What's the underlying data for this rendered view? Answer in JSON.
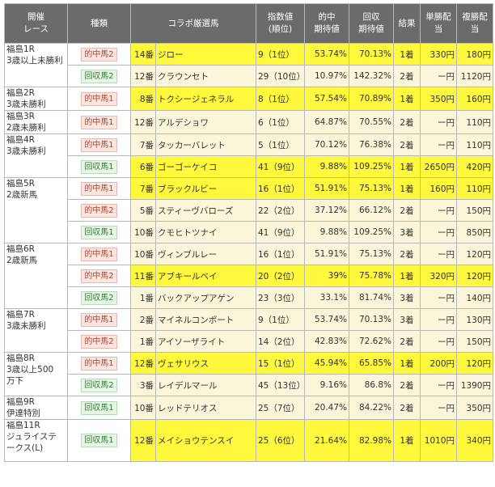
{
  "header": {
    "race": "開催\nレース",
    "type": "種類",
    "horse": "コラボ厳選馬",
    "index": "指数値\n(順位)",
    "hit_rate": "的中\n期待値",
    "return_rate": "回収\n期待値",
    "finish": "結果",
    "win_pay": "単勝配当",
    "place_pay": "複勝配当"
  },
  "colors": {
    "header_bg": "#6b6b6b",
    "hit_row_bg": "#fff83d",
    "miss_row_bg": "#fbf6d9",
    "tekichu_tag": "#fbe5de",
    "kaishu_tag": "#e7f6e5"
  },
  "races": [
    {
      "label": "福島1R\n3歳以上未勝利",
      "rows": [
        {
          "type": "的中馬2",
          "tag": "tekichu",
          "num": "14番",
          "horse": "ジロー",
          "index": "9（1位）",
          "hit": "53.74%",
          "ret": "70.13%",
          "finish": "1着",
          "win": "330円",
          "place": "180円",
          "hl": true
        },
        {
          "type": "回収馬2",
          "tag": "kaishu",
          "num": "12番",
          "horse": "クラウンセト",
          "index": "29（10位）",
          "hit": "10.97%",
          "ret": "142.32%",
          "finish": "2着",
          "win": "ー円",
          "place": "1120円",
          "hl": false
        }
      ]
    },
    {
      "label": "福島2R\n3歳未勝利",
      "rows": [
        {
          "type": "的中馬1",
          "tag": "tekichu",
          "num": "8番",
          "horse": "トクシージェネラル",
          "index": "8（1位）",
          "hit": "57.54%",
          "ret": "70.89%",
          "finish": "1着",
          "win": "350円",
          "place": "160円",
          "hl": true
        }
      ]
    },
    {
      "label": "福島3R\n2歳未勝利",
      "rows": [
        {
          "type": "的中馬1",
          "tag": "tekichu",
          "num": "12番",
          "horse": "アルデショワ",
          "index": "6（1位）",
          "hit": "64.87%",
          "ret": "70.55%",
          "finish": "2着",
          "win": "ー円",
          "place": "110円",
          "hl": false
        }
      ]
    },
    {
      "label": "福島4R\n3歳未勝利",
      "rows": [
        {
          "type": "的中馬1",
          "tag": "tekichu",
          "num": "7番",
          "horse": "タッカーバレット",
          "index": "5（1位）",
          "hit": "70.12%",
          "ret": "76.38%",
          "finish": "2着",
          "win": "ー円",
          "place": "110円",
          "hl": false
        },
        {
          "type": "回収馬1",
          "tag": "kaishu",
          "num": "6番",
          "horse": "ゴーゴーケイコ",
          "index": "41（9位）",
          "hit": "9.88%",
          "ret": "109.25%",
          "finish": "1着",
          "win": "2650円",
          "place": "420円",
          "hl": true
        }
      ]
    },
    {
      "label": "福島5R\n2歳新馬",
      "rows": [
        {
          "type": "的中馬1",
          "tag": "tekichu",
          "num": "7番",
          "horse": "ブラックルビー",
          "index": "16（1位）",
          "hit": "51.91%",
          "ret": "75.13%",
          "finish": "1着",
          "win": "160円",
          "place": "110円",
          "hl": true
        },
        {
          "type": "的中馬2",
          "tag": "tekichu",
          "num": "5番",
          "horse": "スティーヴバローズ",
          "index": "22（2位）",
          "hit": "37.12%",
          "ret": "66.12%",
          "finish": "2着",
          "win": "ー円",
          "place": "150円",
          "hl": false
        },
        {
          "type": "回収馬1",
          "tag": "kaishu",
          "num": "10番",
          "horse": "クモヒトツナイ",
          "index": "41（9位）",
          "hit": "9.88%",
          "ret": "109.25%",
          "finish": "3着",
          "win": "ー円",
          "place": "850円",
          "hl": false
        }
      ]
    },
    {
      "label": "福島6R\n2歳新馬",
      "rows": [
        {
          "type": "的中馬1",
          "tag": "tekichu",
          "num": "10番",
          "horse": "ヴィンブルレー",
          "index": "16（1位）",
          "hit": "51.91%",
          "ret": "75.13%",
          "finish": "2着",
          "win": "ー円",
          "place": "120円",
          "hl": false
        },
        {
          "type": "的中馬2",
          "tag": "tekichu",
          "num": "11番",
          "horse": "アブキールベイ",
          "index": "20（2位）",
          "hit": "39%",
          "ret": "75.78%",
          "finish": "1着",
          "win": "320円",
          "place": "120円",
          "hl": true
        },
        {
          "type": "回収馬2",
          "tag": "kaishu",
          "num": "1番",
          "horse": "バックアップアゲン",
          "index": "23（3位）",
          "hit": "33.1%",
          "ret": "81.74%",
          "finish": "3着",
          "win": "ー円",
          "place": "140円",
          "hl": false
        }
      ]
    },
    {
      "label": "福島7R\n3歳未勝利",
      "rows": [
        {
          "type": "的中馬1",
          "tag": "tekichu",
          "num": "2番",
          "horse": "マイネルコンポート",
          "index": "9（1位）",
          "hit": "53.74%",
          "ret": "70.13%",
          "finish": "3着",
          "win": "ー円",
          "place": "130円",
          "hl": false
        },
        {
          "type": "的中馬2",
          "tag": "tekichu",
          "num": "1番",
          "horse": "アイソーザライト",
          "index": "14（2位）",
          "hit": "42.83%",
          "ret": "72.62%",
          "finish": "2着",
          "win": "ー円",
          "place": "150円",
          "hl": false
        }
      ]
    },
    {
      "label": "福島8R\n3歳以上500\n万下",
      "rows": [
        {
          "type": "的中馬1",
          "tag": "tekichu",
          "num": "12番",
          "horse": "ヴェサリウス",
          "index": "15（1位）",
          "hit": "45.94%",
          "ret": "65.85%",
          "finish": "1着",
          "win": "200円",
          "place": "120円",
          "hl": true
        },
        {
          "type": "回収馬2",
          "tag": "kaishu",
          "num": "3番",
          "horse": "レイデルマール",
          "index": "45（13位）",
          "hit": "9.16%",
          "ret": "86.8%",
          "finish": "2着",
          "win": "ー円",
          "place": "1390円",
          "hl": false
        }
      ]
    },
    {
      "label": "福島9R\n伊達特別",
      "rows": [
        {
          "type": "回収馬1",
          "tag": "kaishu",
          "num": "10番",
          "horse": "レッドテリオス",
          "index": "25（7位）",
          "hit": "20.47%",
          "ret": "84.22%",
          "finish": "2着",
          "win": "ー円",
          "place": "350円",
          "hl": false
        }
      ]
    },
    {
      "label": "福島11R\nジュライステ\nークス(L)",
      "tall": true,
      "rows": [
        {
          "type": "回収馬1",
          "tag": "kaishu",
          "num": "12番",
          "horse": "メイショウテンスイ",
          "index": "25（6位）",
          "hit": "21.64%",
          "ret": "82.98%",
          "finish": "1着",
          "win": "1010円",
          "place": "340円",
          "hl": true
        }
      ]
    }
  ]
}
